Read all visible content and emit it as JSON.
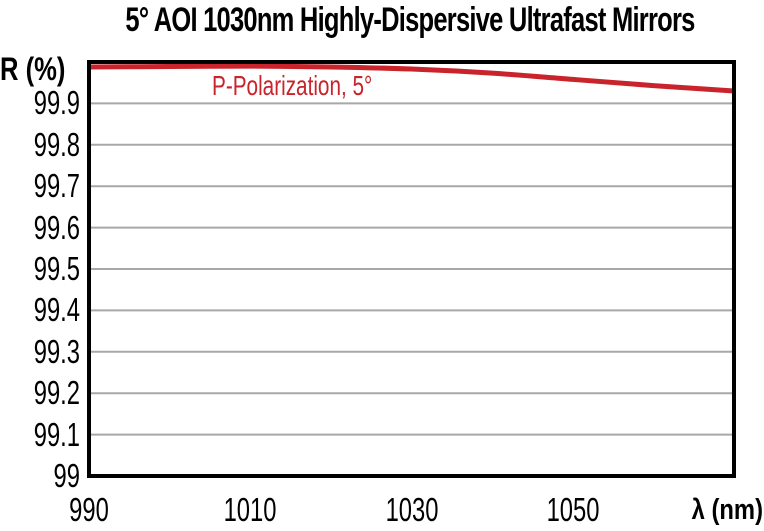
{
  "chart_data": {
    "type": "line",
    "title": "5° AOI 1030nm Highly-Dispersive Ultrafast Mirrors",
    "xlabel": "λ (nm)",
    "ylabel": "R (%)",
    "xlim": [
      990,
      1070
    ],
    "ylim": [
      99,
      100
    ],
    "grid": "horizontal gray gridlines every 0.1 from 99.1 to 99.9; plot fully framed by thick black border; no tick marks",
    "legend_position": "inside plot, upper-left",
    "xticks": [
      {
        "value": 990,
        "label": "990"
      },
      {
        "value": 1010,
        "label": "1010"
      },
      {
        "value": 1030,
        "label": "1030"
      },
      {
        "value": 1050,
        "label": "1050"
      }
    ],
    "yticks": [
      {
        "value": 99.9,
        "label": "99.9"
      },
      {
        "value": 99.8,
        "label": "99.8"
      },
      {
        "value": 99.7,
        "label": "99.7"
      },
      {
        "value": 99.6,
        "label": "99.6"
      },
      {
        "value": 99.5,
        "label": "99.5"
      },
      {
        "value": 99.4,
        "label": "99.4"
      },
      {
        "value": 99.3,
        "label": "99.3"
      },
      {
        "value": 99.2,
        "label": "99.2"
      },
      {
        "value": 99.1,
        "label": "99.1"
      },
      {
        "value": 99,
        "label": "99"
      }
    ],
    "series": [
      {
        "name": "P-Polarization, 5°",
        "color": "#c9232c",
        "x": [
          990,
          1000,
          1010,
          1020,
          1030,
          1040,
          1050,
          1060,
          1070
        ],
        "y": [
          99.988,
          99.989,
          99.99,
          99.988,
          99.983,
          99.973,
          99.958,
          99.943,
          99.93
        ]
      }
    ],
    "colors": {
      "line_red": "#c9232c",
      "grid_gray": "#a8a8a8",
      "axis_black": "#000000",
      "background": "#ffffff",
      "title_text": "#000000"
    }
  }
}
